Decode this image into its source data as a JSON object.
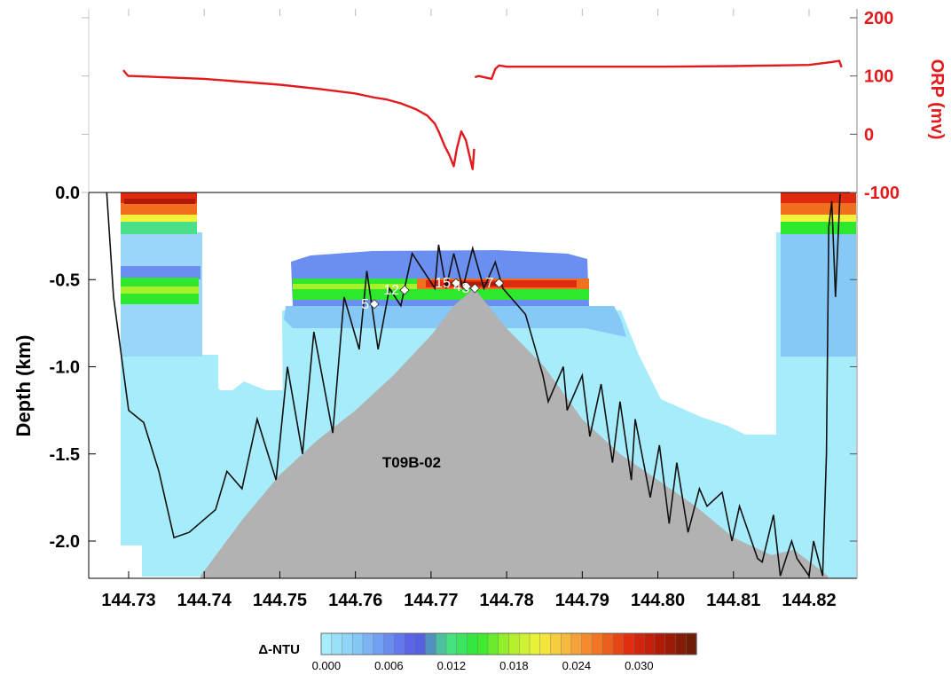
{
  "chart_data": [
    {
      "type": "line",
      "panel": "top",
      "ylabel": "ORP (mv)",
      "yticks": [
        "200",
        "100",
        "0",
        "-100"
      ],
      "ylim": [
        -100,
        200
      ],
      "xlim": [
        144.7265,
        144.8245
      ],
      "color": "#e31a1c",
      "series": [
        {
          "x": [
            144.7293,
            144.7298,
            144.73,
            144.7305,
            144.74,
            144.75,
            144.755,
            144.76,
            144.7625,
            144.764,
            144.766,
            144.768,
            144.7695,
            144.7705,
            144.771,
            144.7718,
            144.7724,
            144.773,
            144.7734,
            144.774,
            144.7746,
            144.7755,
            144.7757
          ],
          "y": [
            110,
            102,
            100,
            100,
            95,
            85,
            78,
            70,
            63,
            60,
            53,
            43,
            32,
            18,
            5,
            -20,
            -35,
            -55,
            -25,
            5,
            -10,
            -60,
            -25
          ]
        },
        {
          "x": [
            144.7758,
            144.7763,
            144.778,
            144.7785,
            144.779,
            144.78,
            144.79,
            144.8,
            144.81,
            144.82,
            144.823,
            144.824,
            144.8243
          ],
          "y": [
            98,
            100,
            95,
            112,
            118,
            116,
            116,
            116,
            117,
            119,
            124,
            126,
            115
          ]
        }
      ]
    },
    {
      "type": "heatmap",
      "panel": "bottom",
      "xlabel": "",
      "ylabel": "Depth (km)",
      "xticks": [
        "144.73",
        "144.74",
        "144.75",
        "144.76",
        "144.77",
        "144.78",
        "144.79",
        "144.80",
        "144.81",
        "144.82"
      ],
      "yticks": [
        "0.0",
        "-0.5",
        "-1.0",
        "-1.5",
        "-2.0"
      ],
      "xlim": [
        144.7265,
        144.8245
      ],
      "ylim": [
        -2.2,
        0.0
      ],
      "colorbar_label": "Δ-NTU",
      "colorbar_ticks": [
        "0.000",
        "0.006",
        "0.012",
        "0.018",
        "0.024",
        "0.030"
      ],
      "colorbar_range": [
        0.0,
        0.036
      ],
      "colorbar_colors": [
        "#a6ecfa",
        "#86c9f6",
        "#6a8ff0",
        "#5555e6",
        "#4ae08a",
        "#2ee82e",
        "#a8f02a",
        "#f2f23a",
        "#f8b040",
        "#f07020",
        "#e02a10",
        "#b01a06",
        "#6e1e06"
      ],
      "annotation": "T09B-02",
      "bathymetry": {
        "x": [
          144.7395,
          144.745,
          144.75,
          144.755,
          144.76,
          144.765,
          144.77,
          144.773,
          144.7757,
          144.78,
          144.785,
          144.79,
          144.795,
          144.8,
          144.805,
          144.81,
          144.815,
          144.818,
          144.8225
        ],
        "y": [
          -2.2,
          -1.88,
          -1.62,
          -1.42,
          -1.25,
          -1.05,
          -0.82,
          -0.65,
          -0.55,
          -0.78,
          -1.0,
          -1.3,
          -1.5,
          -1.65,
          -1.8,
          -1.98,
          -2.08,
          -2.05,
          -2.2
        ]
      },
      "tow_track": {
        "x": [
          144.7271,
          144.728,
          144.73,
          144.732,
          144.734,
          144.736,
          144.738,
          144.7415,
          144.743,
          144.745,
          144.747,
          144.7495,
          144.751,
          144.753,
          144.7545,
          144.757,
          144.7585,
          144.7605,
          144.7615,
          144.763,
          144.7645,
          144.766,
          144.7675,
          144.769,
          144.7705,
          144.771,
          144.772,
          144.773,
          144.7742,
          144.7755,
          144.777,
          144.7785,
          144.7795,
          144.7825,
          144.7848,
          144.7855,
          144.7875,
          144.788,
          144.79,
          144.791,
          144.7925,
          144.794,
          144.795,
          144.7965,
          144.797,
          144.799,
          144.8002,
          144.8015,
          144.8025,
          144.804,
          144.8055,
          144.8065,
          144.8085,
          144.8098,
          144.8108,
          144.8132,
          144.8138,
          144.8153,
          144.8162,
          144.8177,
          144.8184,
          144.82,
          144.8206,
          144.8218,
          144.8223,
          144.8226,
          144.823,
          144.8235,
          144.8241
        ],
        "y": [
          0.0,
          -0.6,
          -1.25,
          -1.32,
          -1.6,
          -1.98,
          -1.95,
          -1.82,
          -1.6,
          -1.7,
          -1.3,
          -1.65,
          -1.0,
          -1.5,
          -0.8,
          -1.38,
          -0.6,
          -0.9,
          -0.45,
          -0.9,
          -0.55,
          -0.65,
          -0.35,
          -0.45,
          -0.55,
          -0.3,
          -0.55,
          -0.35,
          -0.55,
          -0.32,
          -0.55,
          -0.4,
          -0.55,
          -0.7,
          -1.05,
          -1.2,
          -1.0,
          -1.25,
          -1.05,
          -1.4,
          -1.1,
          -1.55,
          -1.2,
          -1.65,
          -1.3,
          -1.75,
          -1.45,
          -1.9,
          -1.55,
          -1.95,
          -1.7,
          -1.8,
          -1.72,
          -2.0,
          -1.8,
          -2.1,
          -2.12,
          -1.85,
          -2.2,
          -2.0,
          -2.1,
          -2.2,
          -2.0,
          -2.2,
          -1.5,
          -0.2,
          -0.05,
          -0.6,
          -0.01
        ]
      },
      "markers": [
        {
          "label": "12",
          "x": 144.7665,
          "y": -0.56
        },
        {
          "label": "15",
          "x": 144.7733,
          "y": -0.52
        },
        {
          "label": "4",
          "x": 144.7747,
          "y": -0.54
        },
        {
          "label": "3",
          "x": 144.7758,
          "y": -0.55
        },
        {
          "label": "7",
          "x": 144.779,
          "y": -0.52
        },
        {
          "label": "5",
          "x": 144.7625,
          "y": -0.64
        }
      ]
    }
  ]
}
